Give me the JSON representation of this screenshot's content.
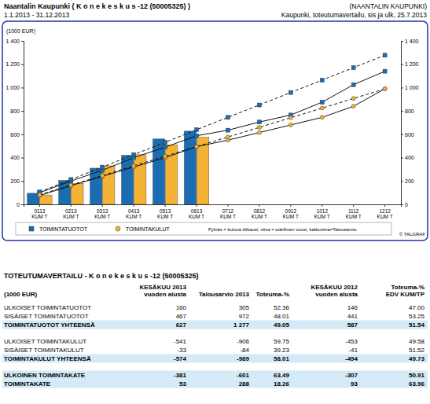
{
  "header": {
    "title": "Naantalin Kaupunki ( K o n e k e s k u s -12 (50005325) )",
    "org": "(NAANTALIN KAUPUNKI)",
    "period": "1.1.2013 - 31.12.2013",
    "report": "Kaupunki, toteutumavertailu, sis ja ulk, 25.7.2013"
  },
  "chart_data": {
    "type": "bar",
    "y_label": "(1000 EUR)",
    "categories": [
      "0113 KUM T",
      "0213 KUM T",
      "0313 KUM T",
      "0413 KUM T",
      "0513 KUM T",
      "0613 KUM T",
      "0712 KUM T",
      "0812 KUM T",
      "0912 KUM T",
      "1012 KUM T",
      "1112 KUM T",
      "1212 KUM T"
    ],
    "ylim": [
      0,
      1400
    ],
    "yticks": [
      0,
      200,
      400,
      600,
      800,
      {
        "value": 1000,
        "label": "1 000"
      },
      {
        "value": 1200,
        "label": "1 200"
      },
      {
        "value": 1400,
        "label": "1 400"
      }
    ],
    "y2lim": [
      0,
      1400
    ],
    "y2ticks": [
      0,
      200,
      400,
      600,
      800,
      {
        "value": 1000,
        "label": "1 000"
      },
      {
        "value": 1200,
        "label": "1 200"
      },
      {
        "value": 1400,
        "label": "1 400"
      }
    ],
    "legend": "bottom",
    "series": [
      {
        "name": "TOIMINTATUOTOT",
        "type": "bar",
        "color": "#1a6db3",
        "values": [
          95,
          205,
          310,
          420,
          560,
          627,
          null,
          null,
          null,
          null,
          null,
          null
        ]
      },
      {
        "name": "TOIMINTAKULUT",
        "type": "bar",
        "color": "#f5b335",
        "values": [
          80,
          180,
          330,
          425,
          510,
          574,
          null,
          null,
          null,
          null,
          null,
          null
        ]
      },
      {
        "name": "TOIMINTATUOTOT",
        "type": "line",
        "line_style": "solid",
        "marker": "square",
        "color": "#1a6db3",
        "values": [
          100,
          200,
          292,
          400,
          490,
          587,
          635,
          705,
          765,
          875,
          1025,
          1140
        ]
      },
      {
        "name": "TOIMINTAKULUT",
        "type": "line",
        "line_style": "solid",
        "marker": "circle",
        "color": "#f5b335",
        "values": [
          75,
          160,
          240,
          320,
          400,
          494,
          550,
          615,
          680,
          745,
          840,
          990
        ]
      },
      {
        "name": "TOIMINTATUOTOT",
        "type": "line",
        "line_style": "dashed",
        "marker": "square",
        "color": "#1a6db3",
        "values": [
          106,
          213,
          319,
          426,
          532,
          639,
          745,
          851,
          958,
          1064,
          1171,
          1277
        ]
      },
      {
        "name": "TOIMINTAKULUT",
        "type": "line",
        "line_style": "dashed",
        "marker": "circle",
        "color": "#f5b335",
        "values": [
          82,
          165,
          247,
          330,
          412,
          495,
          577,
          659,
          742,
          824,
          907,
          989
        ]
      }
    ],
    "annotations": [
      "Pylväs = kuluva tilikausi; viiva = edellinen vuosi; katkoviiva=Talousarvio",
      "© TALGRAF"
    ]
  },
  "table": {
    "title": "TOTEUTUMAVERTAILU - K o n e k e s k u s -12 (50005325)",
    "header": [
      [
        "(1000 EUR)"
      ],
      [
        "KESÄKUU 2013",
        "vuoden alusta"
      ],
      [
        "Talousarvio 2013"
      ],
      [
        "Toteuma-%"
      ],
      [
        "KESÄKUU 2012",
        "vuoden alusta"
      ],
      [
        "Toteuma-%",
        "EDV KUM/TP"
      ]
    ],
    "sections": [
      {
        "rows": [
          [
            "ULKOISET TOIMINTATUOTOT",
            "160",
            "305",
            "52.36",
            "146",
            "47.00"
          ],
          [
            "SISÄISET TOIMINTATUOTOT",
            "467",
            "972",
            "48.01",
            "441",
            "53.25"
          ]
        ],
        "totals": [
          [
            "TOIMINTATUOTOT YHTEENSÄ",
            "627",
            "1 277",
            "49.05",
            "587",
            "51.54"
          ]
        ]
      },
      {
        "rows": [
          [
            "ULKOISET TOIMINTAKULUT",
            "-541",
            "-906",
            "59.75",
            "-453",
            "49.58"
          ],
          [
            "SISÄISET TOIMINTAKULUT",
            "-33",
            "-84",
            "39.23",
            "-41",
            "51.52"
          ]
        ],
        "totals": [
          [
            "TOIMINTAKULUT YHTEENSÄ",
            "-574",
            "-989",
            "58.01",
            "-494",
            "49.73"
          ]
        ]
      },
      {
        "rows": [],
        "totals": [
          [
            "ULKOINEN TOIMINTAKATE",
            "-381",
            "-601",
            "63.49",
            "-307",
            "50.91"
          ],
          [
            "TOIMINTAKATE",
            "53",
            "288",
            "18.26",
            "93",
            "63.96"
          ]
        ]
      }
    ]
  }
}
